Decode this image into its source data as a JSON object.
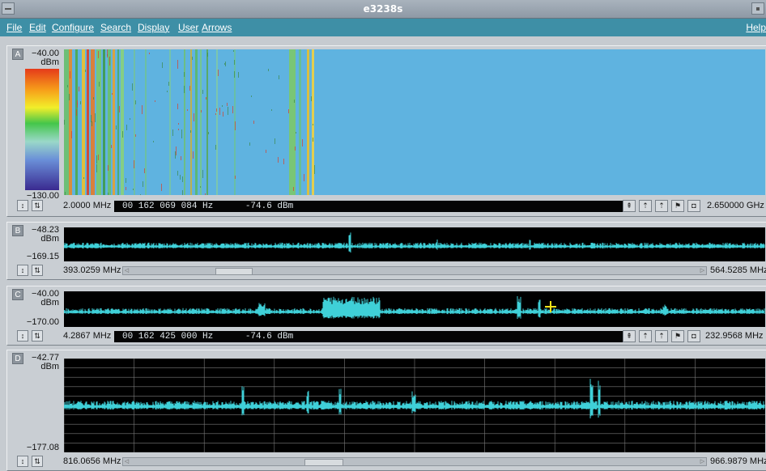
{
  "window": {
    "title": "e3238s"
  },
  "menu": [
    "File",
    "Edit",
    "Configure",
    "Search",
    "Display",
    "User",
    "Arrows"
  ],
  "help": "Help",
  "panels": {
    "A": {
      "label": "A",
      "top": "−40.00",
      "unit": "dBm",
      "bottom": "−130.00",
      "start_freq": "2.0000 MHz",
      "stop_freq": "2.650000 GHz",
      "readout": "00 162 069 084 Hz      -74.6 dBm"
    },
    "B": {
      "label": "B",
      "top": "−48.23",
      "unit": "dBm",
      "bottom": "−169.15",
      "start_freq": "393.0259 MHz",
      "stop_freq": "564.5285 MHz"
    },
    "C": {
      "label": "C",
      "top": "−40.00",
      "unit": "dBm",
      "bottom": "−170.00",
      "start_freq": "4.2867 MHz",
      "stop_freq": "232.9568 MHz",
      "readout": "00 162 425 000 Hz      -74.6 dBm"
    },
    "D": {
      "label": "D",
      "top": "−42.77",
      "unit": "dBm",
      "bottom": "−177.08",
      "start_freq": "816.0656 MHz",
      "stop_freq": "966.9879 MHz"
    }
  },
  "colors": {
    "trace": "#3fd0d8",
    "waterfall_bg": "#5fb3e0",
    "menubar": "#3e8fa6",
    "grid": "#7a7a7a"
  },
  "icons": [
    "marker-peak-icon",
    "marker-left-icon",
    "marker-right-icon",
    "marker-search-icon",
    "camera-icon"
  ]
}
